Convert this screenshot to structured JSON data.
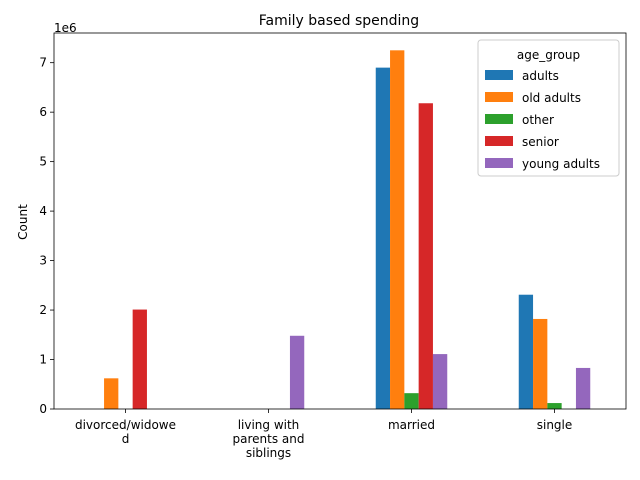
{
  "chart_data": {
    "type": "bar",
    "title": "Family based spending",
    "xlabel": "",
    "ylabel": "Count",
    "offset_label": "1e6",
    "categories": [
      [
        "divorced/widowe",
        "d"
      ],
      [
        "living with",
        "parents and",
        "siblings"
      ],
      [
        "married"
      ],
      [
        "single"
      ]
    ],
    "ylim": [
      0,
      7.6
    ],
    "yticks": [
      "0",
      "1",
      "2",
      "3",
      "4",
      "5",
      "6",
      "7"
    ],
    "legend": {
      "title": "age_group",
      "position": "top-right"
    },
    "series": [
      {
        "name": "adults",
        "color": "#1f77b4",
        "values": [
          0,
          0,
          6.9,
          2.31
        ]
      },
      {
        "name": "old adults",
        "color": "#ff7f0e",
        "values": [
          0.62,
          0,
          7.25,
          1.82
        ]
      },
      {
        "name": "other",
        "color": "#2ca02c",
        "values": [
          0,
          0,
          0.32,
          0.12
        ]
      },
      {
        "name": "senior",
        "color": "#d62728",
        "values": [
          2.01,
          0,
          6.18,
          0
        ]
      },
      {
        "name": "young adults",
        "color": "#9467bd",
        "values": [
          0,
          1.48,
          1.11,
          0.83
        ]
      }
    ]
  }
}
